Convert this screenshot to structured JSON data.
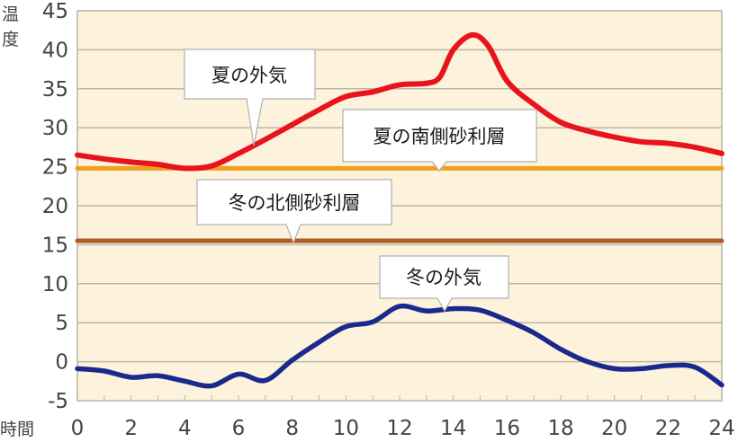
{
  "chart_data": {
    "type": "line",
    "title": "",
    "xlabel": "時間",
    "ylabel": "温度",
    "xlim": [
      0,
      24
    ],
    "ylim": [
      -5,
      45
    ],
    "x_ticks": [
      0,
      2,
      4,
      6,
      8,
      10,
      12,
      14,
      16,
      18,
      20,
      22,
      24
    ],
    "y_ticks": [
      -5,
      0,
      5,
      10,
      15,
      20,
      25,
      30,
      35,
      40,
      45
    ],
    "grid": "horizontal",
    "legend": "none (inline callout labels)",
    "plot_background": "#fdf3dc",
    "series": [
      {
        "name": "夏の外気",
        "color": "#e8141b",
        "x": [
          0,
          1,
          2,
          3,
          4,
          5,
          6,
          7,
          8,
          9,
          10,
          11,
          12,
          13,
          13.5,
          14,
          14.7,
          15.3,
          16,
          17,
          18,
          19,
          20,
          21,
          22,
          23,
          24
        ],
        "values": [
          26.5,
          26.0,
          25.6,
          25.3,
          24.8,
          25.1,
          26.7,
          28.5,
          30.4,
          32.3,
          34.0,
          34.6,
          35.5,
          35.7,
          36.5,
          40.0,
          41.9,
          40.5,
          36.0,
          33.0,
          30.7,
          29.6,
          28.8,
          28.2,
          28.0,
          27.5,
          26.7
        ]
      },
      {
        "name": "夏の南側砂利層",
        "color": "#f0a01e",
        "x": [
          0,
          24
        ],
        "values": [
          24.8,
          24.8
        ]
      },
      {
        "name": "冬の北側砂利層",
        "color": "#b05a26",
        "x": [
          0,
          24
        ],
        "values": [
          15.5,
          15.5
        ]
      },
      {
        "name": "冬の外気",
        "color": "#1a2a8c",
        "x": [
          0,
          1,
          2,
          3,
          4,
          5,
          6,
          7,
          8,
          9,
          10,
          11,
          12,
          13,
          14,
          15,
          16,
          17,
          18,
          19,
          20,
          21,
          22,
          23,
          24
        ],
        "values": [
          -0.9,
          -1.2,
          -2.0,
          -1.8,
          -2.5,
          -3.1,
          -1.6,
          -2.4,
          0.2,
          2.5,
          4.5,
          5.1,
          7.1,
          6.5,
          6.8,
          6.6,
          5.3,
          3.7,
          1.6,
          0.0,
          -0.9,
          -0.9,
          -0.5,
          -0.7,
          -3.0
        ]
      }
    ],
    "annotations": [
      {
        "text": "夏の外気",
        "series": "夏の外気",
        "point_x": 6.5,
        "point_y": 28.0
      },
      {
        "text": "夏の南側砂利層",
        "series": "夏の南側砂利層",
        "point_x": 13.5,
        "point_y": 24.8
      },
      {
        "text": "冬の北側砂利層",
        "series": "冬の北側砂利層",
        "point_x": 8.0,
        "point_y": 15.5
      },
      {
        "text": "冬の外気",
        "series": "冬の外気",
        "point_x": 13.7,
        "point_y": 6.6
      }
    ]
  },
  "labels": {
    "y_axis_title_1": "温",
    "y_axis_title_2": "度",
    "x_axis_title": "時間"
  }
}
